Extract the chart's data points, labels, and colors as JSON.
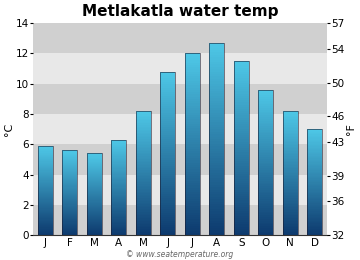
{
  "title": "Metlakatla water temp",
  "months": [
    "J",
    "F",
    "M",
    "A",
    "M",
    "J",
    "J",
    "A",
    "S",
    "O",
    "N",
    "D"
  ],
  "values_c": [
    5.9,
    5.6,
    5.4,
    6.3,
    8.2,
    10.8,
    12.0,
    12.7,
    11.5,
    9.6,
    8.2,
    7.0
  ],
  "ylim_c": [
    0,
    14
  ],
  "ylim_f": [
    32,
    57
  ],
  "yticks_c": [
    0,
    2,
    4,
    6,
    8,
    10,
    12,
    14
  ],
  "yticks_f": [
    32,
    36,
    39,
    43,
    46,
    50,
    54,
    57
  ],
  "ylabel_left": "°C",
  "ylabel_right": "°F",
  "watermark": "© www.seatemperature.org",
  "bg_color_light": "#e8e8e8",
  "bg_color_dark": "#d0d0d0",
  "bar_color_top": "#4ec9e8",
  "bar_color_bottom": "#0d3a6e",
  "title_fontsize": 11,
  "axis_fontsize": 8,
  "tick_fontsize": 7.5,
  "bar_width": 0.6,
  "band_ranges": [
    [
      0,
      2
    ],
    [
      4,
      6
    ],
    [
      8,
      10
    ],
    [
      12,
      14
    ]
  ]
}
